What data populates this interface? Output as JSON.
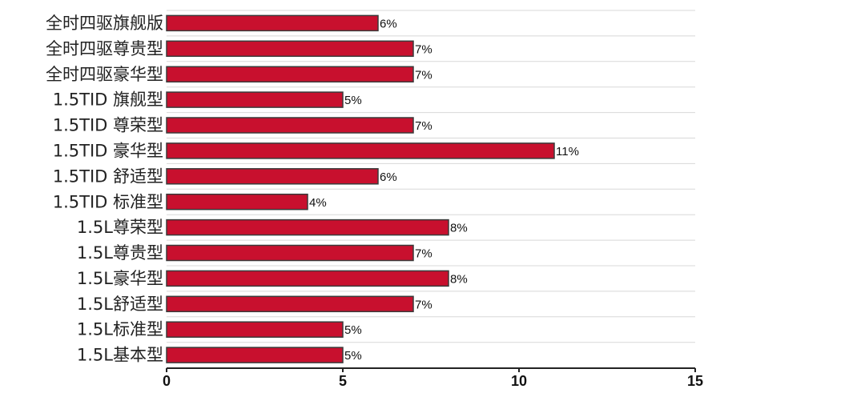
{
  "chart_data": {
    "type": "bar",
    "orientation": "horizontal",
    "categories": [
      "全时四驱旗舰版",
      "全时四驱尊贵型",
      "全时四驱豪华型",
      "1.5TID 旗舰型",
      "1.5TID 尊荣型",
      "1.5TID 豪华型",
      "1.5TID 舒适型",
      "1.5TID 标准型",
      "1.5L尊荣型",
      "1.5L尊贵型",
      "1.5L豪华型",
      "1.5L舒适型",
      "1.5L标准型",
      "1.5L基本型"
    ],
    "values": [
      6,
      7,
      7,
      5,
      7,
      11,
      6,
      4,
      8,
      7,
      8,
      7,
      5,
      5
    ],
    "value_labels": [
      "6%",
      "7%",
      "7%",
      "5%",
      "7%",
      "11%",
      "6%",
      "4%",
      "8%",
      "7%",
      "8%",
      "7%",
      "5%",
      "5%"
    ],
    "xlim": [
      0,
      15
    ],
    "x_ticks": [
      0,
      5,
      10,
      15
    ],
    "x_tick_labels": [
      "0",
      "5",
      "10",
      "15"
    ],
    "grid": "horizontal row separators",
    "legend": "none",
    "colors": {
      "bar_fill": "#c8102e",
      "bar_stroke": "#3a3a3a",
      "grid": "#d8d8d8",
      "axis": "#222222"
    }
  }
}
